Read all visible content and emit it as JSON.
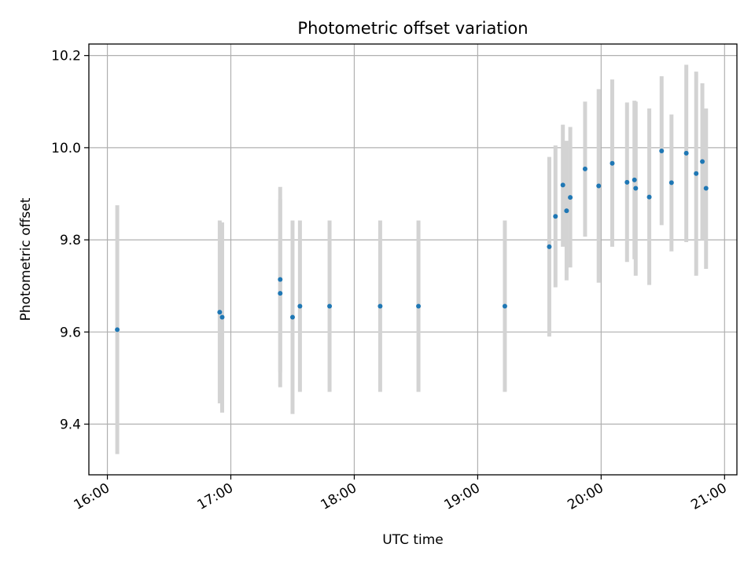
{
  "chart_data": {
    "type": "scatter",
    "title": "Photometric offset variation",
    "xlabel": "UTC time",
    "ylabel": "Photometric offset",
    "x_unit": "hours UTC",
    "xlim": [
      15.85,
      21.1
    ],
    "ylim": [
      9.29,
      10.225
    ],
    "grid": true,
    "x_ticks": [
      {
        "value": 16,
        "label": "16:00"
      },
      {
        "value": 17,
        "label": "17:00"
      },
      {
        "value": 18,
        "label": "18:00"
      },
      {
        "value": 19,
        "label": "19:00"
      },
      {
        "value": 20,
        "label": "20:00"
      },
      {
        "value": 21,
        "label": "21:00"
      }
    ],
    "y_ticks": [
      {
        "value": 9.4,
        "label": "9.4"
      },
      {
        "value": 9.6,
        "label": "9.6"
      },
      {
        "value": 9.8,
        "label": "9.8"
      },
      {
        "value": 10.0,
        "label": "10.0"
      },
      {
        "value": 10.2,
        "label": "10.2"
      }
    ],
    "colors": {
      "point": "#1f77b4",
      "errorbar": "#d3d3d3",
      "grid": "#b0b0b0"
    },
    "series": [
      {
        "name": "Photometric offset",
        "points": [
          {
            "x": 16.08,
            "y": 9.605,
            "low": 9.335,
            "high": 9.875
          },
          {
            "x": 16.91,
            "y": 9.643,
            "low": 9.445,
            "high": 9.842
          },
          {
            "x": 16.93,
            "y": 9.632,
            "low": 9.425,
            "high": 9.838
          },
          {
            "x": 17.4,
            "y": 9.714,
            "low": 9.513,
            "high": 9.915
          },
          {
            "x": 17.4,
            "y": 9.684,
            "low": 9.48,
            "high": 9.888
          },
          {
            "x": 17.5,
            "y": 9.632,
            "low": 9.422,
            "high": 9.842
          },
          {
            "x": 17.56,
            "y": 9.656,
            "low": 9.47,
            "high": 9.842
          },
          {
            "x": 17.8,
            "y": 9.656,
            "low": 9.47,
            "high": 9.842
          },
          {
            "x": 18.21,
            "y": 9.656,
            "low": 9.47,
            "high": 9.842
          },
          {
            "x": 18.52,
            "y": 9.656,
            "low": 9.47,
            "high": 9.842
          },
          {
            "x": 19.22,
            "y": 9.656,
            "low": 9.47,
            "high": 9.842
          },
          {
            "x": 19.58,
            "y": 9.785,
            "low": 9.59,
            "high": 9.98
          },
          {
            "x": 19.63,
            "y": 9.851,
            "low": 9.697,
            "high": 10.005
          },
          {
            "x": 19.69,
            "y": 9.919,
            "low": 9.785,
            "high": 10.05
          },
          {
            "x": 19.72,
            "y": 9.863,
            "low": 9.712,
            "high": 10.015
          },
          {
            "x": 19.75,
            "y": 9.892,
            "low": 9.74,
            "high": 10.045
          },
          {
            "x": 19.87,
            "y": 9.954,
            "low": 9.807,
            "high": 10.1
          },
          {
            "x": 19.98,
            "y": 9.917,
            "low": 9.707,
            "high": 10.127
          },
          {
            "x": 20.09,
            "y": 9.966,
            "low": 9.785,
            "high": 10.148
          },
          {
            "x": 20.21,
            "y": 9.925,
            "low": 9.752,
            "high": 10.098
          },
          {
            "x": 20.27,
            "y": 9.93,
            "low": 9.758,
            "high": 10.102
          },
          {
            "x": 20.28,
            "y": 9.912,
            "low": 9.722,
            "high": 10.1
          },
          {
            "x": 20.39,
            "y": 9.893,
            "low": 9.702,
            "high": 10.085
          },
          {
            "x": 20.49,
            "y": 9.993,
            "low": 9.832,
            "high": 10.155
          },
          {
            "x": 20.57,
            "y": 9.924,
            "low": 9.775,
            "high": 10.072
          },
          {
            "x": 20.69,
            "y": 9.988,
            "low": 9.795,
            "high": 10.18
          },
          {
            "x": 20.77,
            "y": 9.944,
            "low": 9.722,
            "high": 10.165
          },
          {
            "x": 20.82,
            "y": 9.97,
            "low": 9.8,
            "high": 10.14
          },
          {
            "x": 20.85,
            "y": 9.912,
            "low": 9.737,
            "high": 10.085
          }
        ]
      }
    ]
  }
}
